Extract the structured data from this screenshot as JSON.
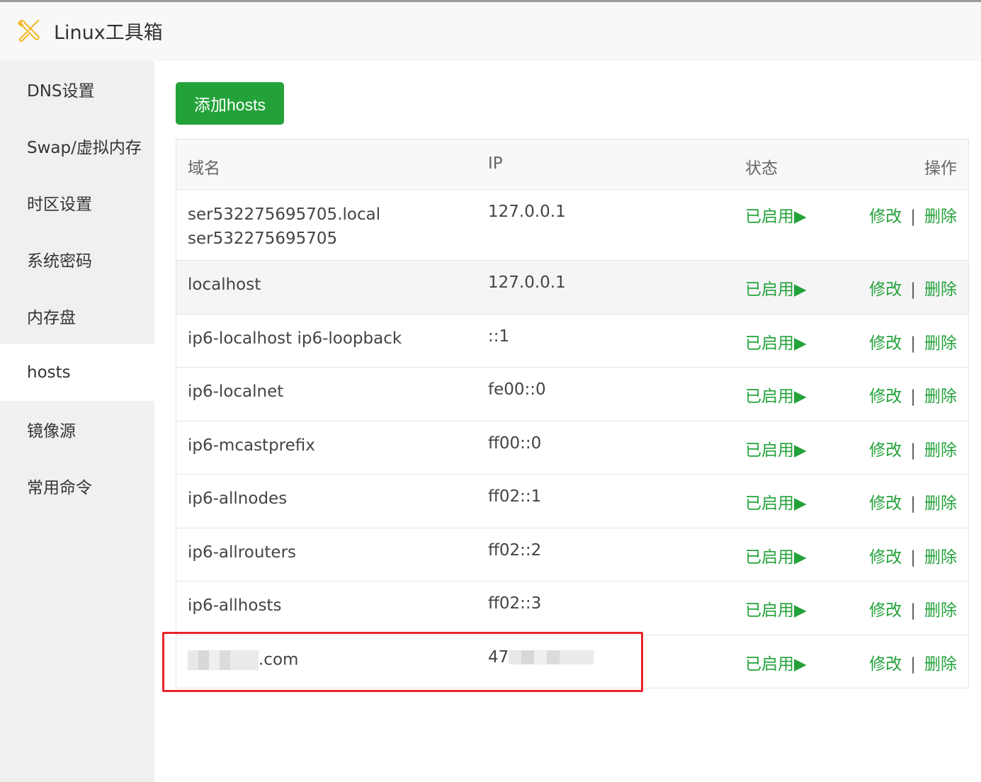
{
  "app": {
    "title": "Linux工具箱",
    "logo_icon": "tools-wrench-screwdriver-icon"
  },
  "sidebar": {
    "items": [
      {
        "label": "DNS设置"
      },
      {
        "label": "Swap/虚拟内存"
      },
      {
        "label": "时区设置"
      },
      {
        "label": "系统密码"
      },
      {
        "label": "内存盘"
      },
      {
        "label": "hosts",
        "active": true
      },
      {
        "label": "镜像源"
      },
      {
        "label": "常用命令"
      }
    ]
  },
  "toolbar": {
    "add_label": "添加hosts",
    "accent": "#23a23a"
  },
  "table": {
    "headers": {
      "domain": "域名",
      "ip": "IP",
      "status": "状态",
      "ops": "操作"
    },
    "edit_label": "修改",
    "delete_label": "删除",
    "separator": "|",
    "rows": [
      {
        "domain": "ser532275695705.local",
        "domain2": "ser532275695705",
        "ip": "127.0.0.1",
        "status": "已启用▶"
      },
      {
        "domain": "localhost",
        "ip": "127.0.0.1",
        "status": "已启用▶"
      },
      {
        "domain": "ip6-localhost ip6-loopback",
        "ip": "::1",
        "status": "已启用▶"
      },
      {
        "domain": "ip6-localnet",
        "ip": "fe00::0",
        "status": "已启用▶"
      },
      {
        "domain": "ip6-mcastprefix",
        "ip": "ff00::0",
        "status": "已启用▶"
      },
      {
        "domain": "ip6-allnodes",
        "ip": "ff02::1",
        "status": "已启用▶"
      },
      {
        "domain": "ip6-allrouters",
        "ip": "ff02::2",
        "status": "已启用▶"
      },
      {
        "domain": "ip6-allhosts",
        "ip": "ff02::3",
        "status": "已启用▶"
      },
      {
        "domain": ".com",
        "ip": "47",
        "status": "已启用▶",
        "redacted": true
      }
    ]
  }
}
